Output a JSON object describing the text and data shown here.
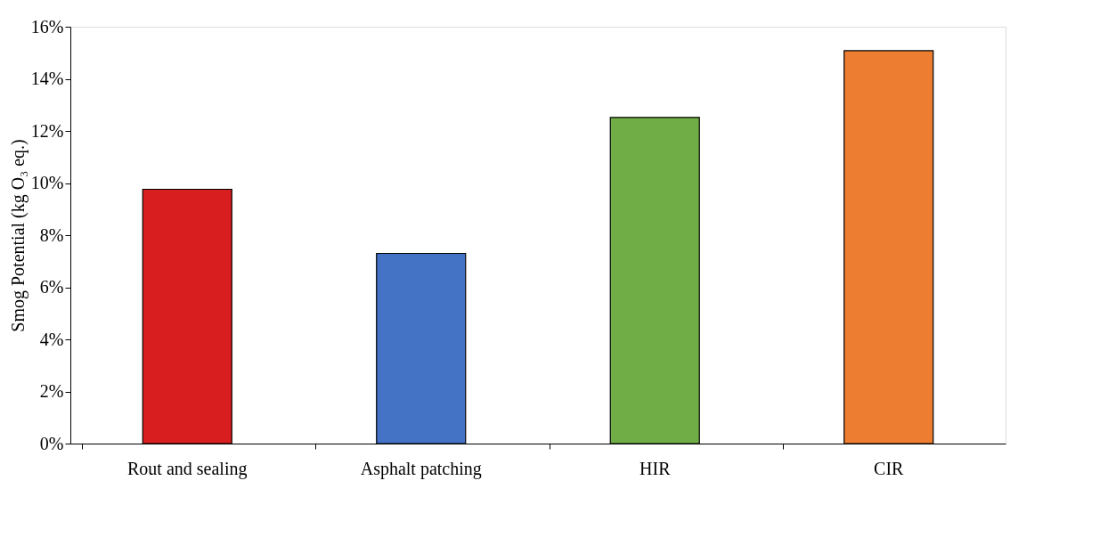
{
  "chart_data": {
    "type": "bar",
    "ylabel": "Smog Potential (kg O₃ eq.)",
    "categories": [
      "Rout and sealing",
      "Asphalt patching",
      "HIR",
      "CIR"
    ],
    "values": [
      9.76,
      7.3,
      12.52,
      15.08
    ],
    "colors": [
      "#d81e1e",
      "#4472c4",
      "#70ad47",
      "#ed7d31"
    ],
    "ylim": [
      0,
      16
    ],
    "yticks": [
      {
        "value": 0,
        "label": "0%"
      },
      {
        "value": 2,
        "label": "2%"
      },
      {
        "value": 4,
        "label": "4%"
      },
      {
        "value": 6,
        "label": "6%"
      },
      {
        "value": 8,
        "label": "8%"
      },
      {
        "value": 10,
        "label": "10%"
      },
      {
        "value": 12,
        "label": "12%"
      },
      {
        "value": 14,
        "label": "14%"
      },
      {
        "value": 16,
        "label": "16%"
      }
    ],
    "grid": false
  }
}
